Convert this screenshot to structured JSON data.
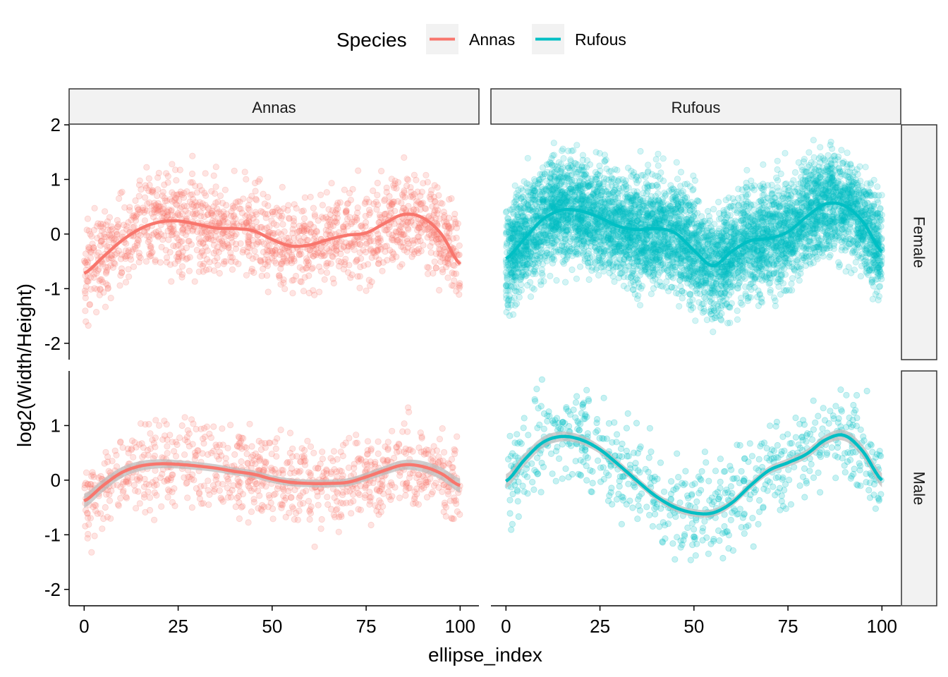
{
  "colors": {
    "Annas": "#F8766D",
    "Rufous": "#00BFC4",
    "strip_fill": "#F2F2F2",
    "ribbon": "#BEBEBE"
  },
  "chart_data": {
    "type": "scatter",
    "subtype": "faceted scatter with loess smooth lines",
    "title": "",
    "xlabel": "ellipse_index",
    "ylabel": "log2(Width/Height)",
    "xlim": [
      -4,
      105
    ],
    "ylim": [
      -2.3,
      2.0
    ],
    "x_ticks": [
      0,
      25,
      50,
      75,
      100
    ],
    "y_ticks": [
      -2,
      -1,
      0,
      1,
      2
    ],
    "grid": false,
    "legend": {
      "title": "Species",
      "position": "top",
      "entries": [
        "Annas",
        "Rufous"
      ]
    },
    "facet_columns": [
      "Annas",
      "Rufous"
    ],
    "facet_rows": [
      "Female",
      "Male"
    ],
    "panels": [
      {
        "species": "Annas",
        "sex": "Female",
        "points_shown": "approx 1500",
        "ribbon": false,
        "smooth": {
          "x": [
            0,
            5,
            10,
            15,
            20,
            25,
            30,
            35,
            40,
            45,
            50,
            55,
            60,
            65,
            70,
            75,
            80,
            85,
            90,
            95,
            100
          ],
          "y": [
            -0.72,
            -0.42,
            -0.12,
            0.1,
            0.22,
            0.24,
            0.18,
            0.11,
            0.1,
            0.06,
            -0.1,
            -0.22,
            -0.2,
            -0.1,
            -0.02,
            0.02,
            0.2,
            0.36,
            0.3,
            0.0,
            -0.55
          ]
        }
      },
      {
        "species": "Rufous",
        "sex": "Female",
        "points_shown": "approx 6000",
        "ribbon": false,
        "smooth": {
          "x": [
            0,
            5,
            10,
            15,
            20,
            25,
            30,
            35,
            40,
            45,
            50,
            55,
            60,
            65,
            70,
            75,
            80,
            85,
            90,
            95,
            100
          ],
          "y": [
            -0.45,
            -0.08,
            0.28,
            0.44,
            0.42,
            0.3,
            0.14,
            0.08,
            0.1,
            0.02,
            -0.3,
            -0.58,
            -0.32,
            -0.12,
            -0.08,
            0.04,
            0.32,
            0.55,
            0.52,
            0.22,
            -0.32
          ]
        }
      },
      {
        "species": "Annas",
        "sex": "Male",
        "points_shown": "approx 900",
        "ribbon": true,
        "smooth": {
          "x": [
            0,
            5,
            10,
            15,
            20,
            25,
            30,
            35,
            40,
            45,
            50,
            55,
            60,
            65,
            70,
            75,
            80,
            85,
            90,
            95,
            100
          ],
          "y": [
            -0.38,
            -0.1,
            0.14,
            0.26,
            0.3,
            0.29,
            0.26,
            0.22,
            0.16,
            0.11,
            0.02,
            -0.04,
            -0.06,
            -0.06,
            -0.04,
            0.06,
            0.18,
            0.28,
            0.25,
            0.12,
            -0.1
          ]
        }
      },
      {
        "species": "Rufous",
        "sex": "Male",
        "points_shown": "approx 700",
        "ribbon": true,
        "smooth": {
          "x": [
            0,
            5,
            10,
            15,
            20,
            25,
            30,
            35,
            40,
            45,
            50,
            55,
            60,
            65,
            70,
            75,
            80,
            85,
            90,
            95,
            100
          ],
          "y": [
            -0.02,
            0.38,
            0.7,
            0.8,
            0.74,
            0.56,
            0.28,
            -0.02,
            -0.3,
            -0.5,
            -0.6,
            -0.6,
            -0.42,
            -0.1,
            0.18,
            0.32,
            0.48,
            0.74,
            0.82,
            0.52,
            0.0
          ]
        }
      }
    ]
  }
}
